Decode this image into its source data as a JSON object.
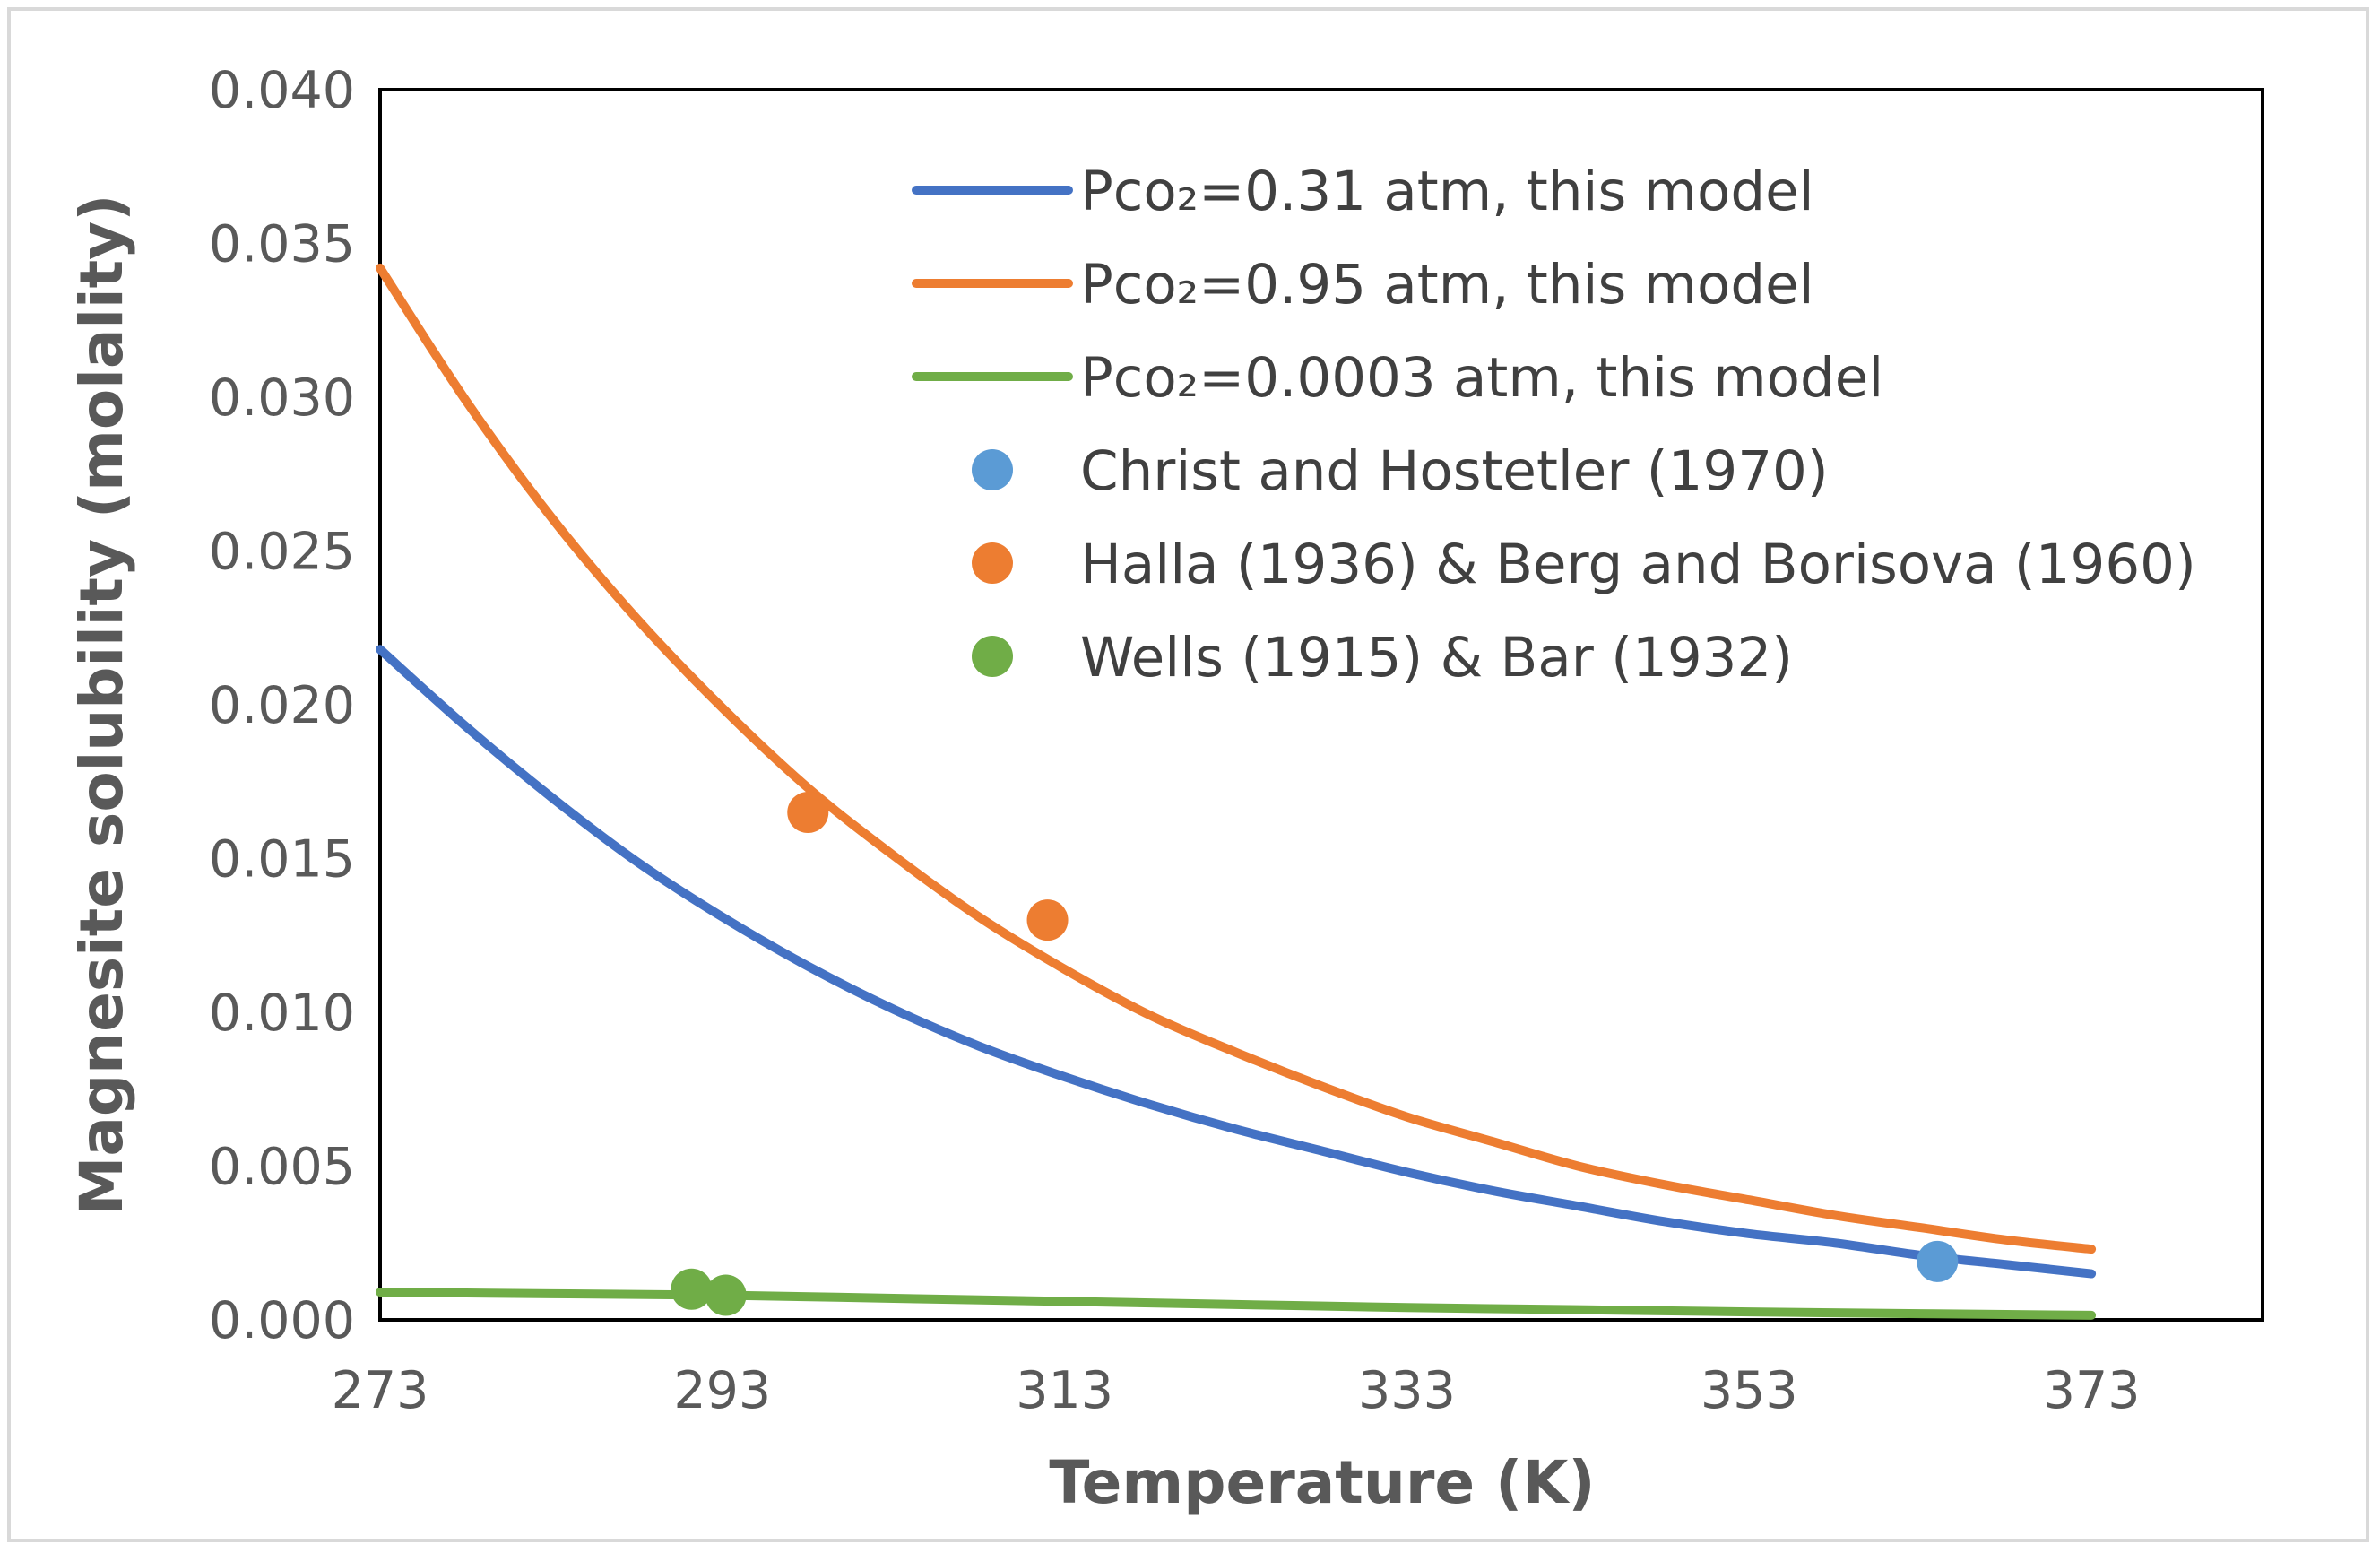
{
  "chart_data": {
    "type": "line",
    "title": "",
    "xlabel": "Temperature (K)",
    "ylabel": "Magnesite solubility (molality)",
    "xlim": [
      273,
      383
    ],
    "ylim": [
      0,
      0.04
    ],
    "x_ticks": [
      "273",
      "293",
      "313",
      "333",
      "353",
      "373"
    ],
    "y_ticks": [
      "0.000",
      "0.005",
      "0.010",
      "0.015",
      "0.020",
      "0.025",
      "0.030",
      "0.035",
      "0.040"
    ],
    "grid": false,
    "legend_position": "top-right",
    "series": [
      {
        "name": "Pco₂=0.31 atm, this model",
        "kind": "line",
        "color": "#4472c4",
        "x": [
          273,
          278,
          283,
          288,
          293,
          298,
          303,
          308,
          313,
          318,
          323,
          328,
          333,
          338,
          343,
          348,
          353,
          358,
          363,
          368,
          373
        ],
        "y": [
          0.0218,
          0.0193,
          0.017,
          0.0149,
          0.0131,
          0.0115,
          0.0101,
          0.0089,
          0.0079,
          0.007,
          0.0062,
          0.0055,
          0.0048,
          0.0042,
          0.0037,
          0.0032,
          0.0028,
          0.0025,
          0.0021,
          0.0018,
          0.0015
        ]
      },
      {
        "name": "Pco₂=0.95 atm, this model",
        "kind": "line",
        "color": "#ed7d31",
        "x": [
          273,
          278,
          283,
          288,
          293,
          298,
          303,
          308,
          313,
          318,
          323,
          328,
          333,
          338,
          343,
          348,
          353,
          358,
          363,
          368,
          373
        ],
        "y": [
          0.0342,
          0.0299,
          0.0261,
          0.0228,
          0.0199,
          0.0173,
          0.0151,
          0.0131,
          0.0114,
          0.0099,
          0.0087,
          0.0076,
          0.0066,
          0.0058,
          0.005,
          0.0044,
          0.0039,
          0.0034,
          0.003,
          0.0026,
          0.0023
        ]
      },
      {
        "name": "Pco₂=0.0003 atm, this model",
        "kind": "line",
        "color": "#70ad47",
        "x": [
          273,
          283,
          293,
          303,
          313,
          323,
          333,
          343,
          353,
          363,
          373
        ],
        "y": [
          0.0009,
          0.00085,
          0.0008,
          0.0007,
          0.0006,
          0.0005,
          0.0004,
          0.00033,
          0.00026,
          0.0002,
          0.00015
        ]
      },
      {
        "name": "Christ and Hostetler (1970)",
        "kind": "scatter",
        "color": "#5b9bd5",
        "x": [
          364
        ],
        "y": [
          0.0019
        ]
      },
      {
        "name": "Halla (1936) & Berg and Borisova (1960)",
        "kind": "scatter",
        "color": "#ed7d31",
        "x": [
          298,
          312
        ],
        "y": [
          0.0165,
          0.013
        ]
      },
      {
        "name": "Wells (1915) & Bar (1932)",
        "kind": "scatter",
        "color": "#70ad47",
        "x": [
          291.2,
          293.2
        ],
        "y": [
          0.001,
          0.0008
        ]
      }
    ]
  }
}
